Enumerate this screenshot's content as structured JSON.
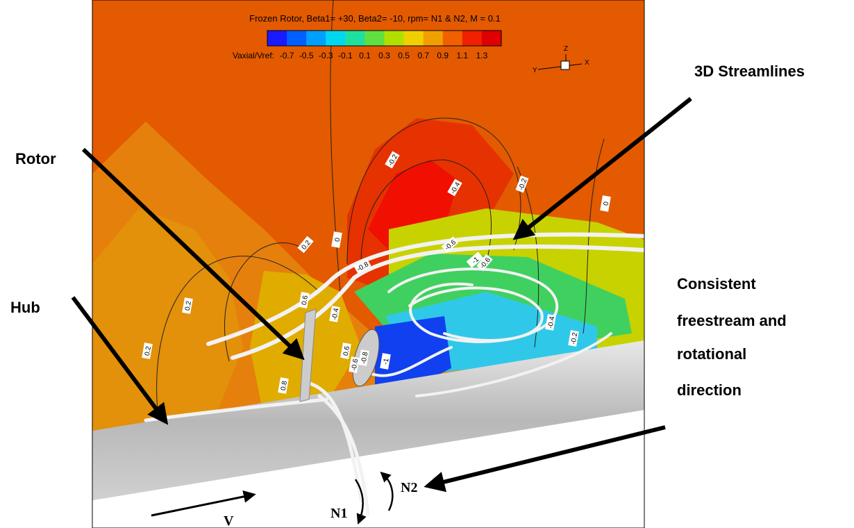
{
  "figure": {
    "title": "Frozen Rotor, Beta1= +30, Beta2= -10, rpm= N1 & N2, M = 0.1",
    "colorbar": {
      "label": "Vaxial/Vref:",
      "ticks": [
        -0.7,
        -0.5,
        -0.3,
        -0.1,
        0.1,
        0.3,
        0.5,
        0.7,
        0.9,
        1.1,
        1.3
      ]
    },
    "axis_triad": {
      "z": "Z",
      "y": "Y",
      "x": "X"
    },
    "annotations": {
      "streamlines": "3D Streamlines",
      "rotor": "Rotor",
      "hub": "Hub",
      "direction": [
        "Consistent",
        "freestream and",
        "rotational",
        "direction"
      ]
    },
    "symbols": {
      "n1": "N1",
      "n2": "N2",
      "v": "V"
    },
    "contour_labels": [
      -0.2,
      -0.4,
      -0.2,
      0,
      0.2,
      0,
      -0.8,
      -0.6,
      -1,
      -0.6,
      0.6,
      -0.4,
      0.2,
      0.8,
      -0.4,
      -0.2,
      -0.6,
      -0.8,
      0.2,
      0.6,
      -1
    ]
  }
}
